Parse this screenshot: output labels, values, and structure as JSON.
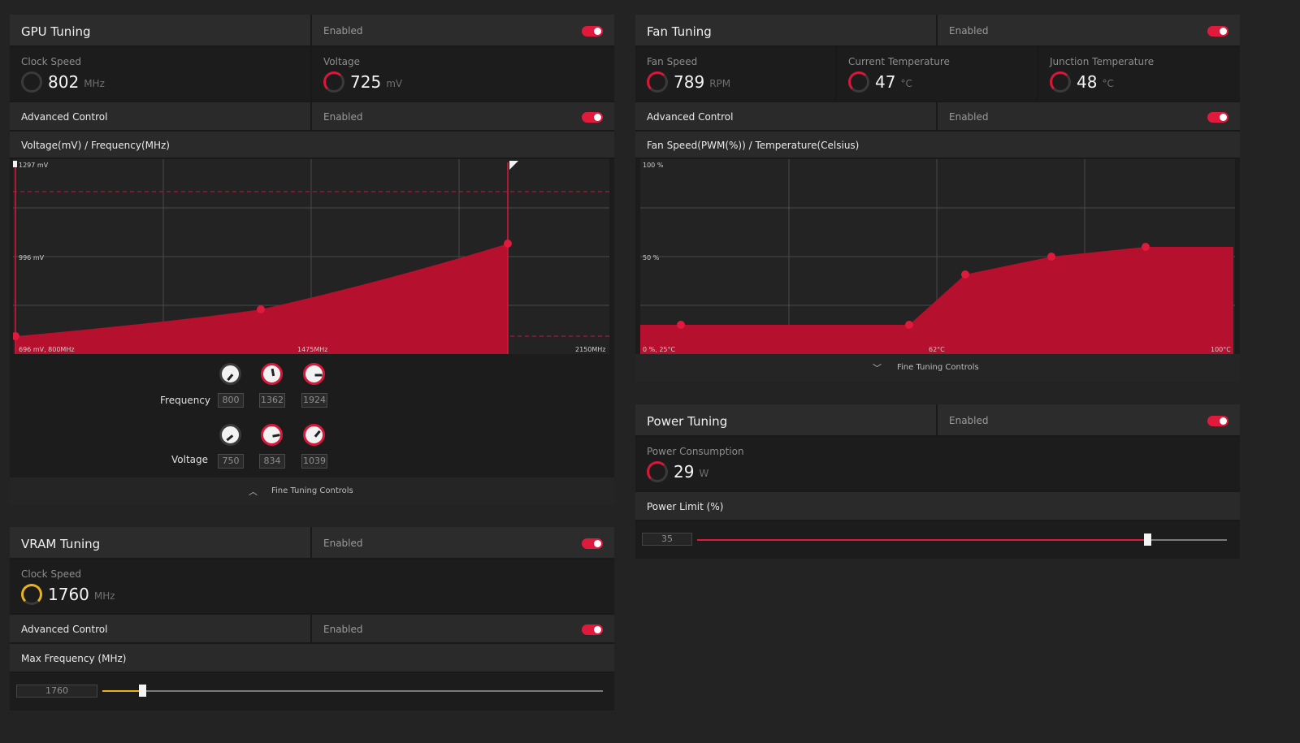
{
  "gpu_tuning": {
    "title": "GPU Tuning",
    "status": "Enabled",
    "clock_speed": {
      "label": "Clock Speed",
      "value": "802",
      "unit": "MHz"
    },
    "voltage": {
      "label": "Voltage",
      "value": "725",
      "unit": "mV"
    },
    "advanced_control": {
      "label": "Advanced Control",
      "status": "Enabled"
    },
    "chart_title": "Voltage(mV) / Frequency(MHz)",
    "chart_labels": {
      "top_left": "1297 mV",
      "mid_left": "996 mV",
      "bottom_left": "696 mV, 800MHz",
      "bottom_mid": "1475MHz",
      "bottom_right": "2150MHz"
    },
    "frequency_label": "Frequency",
    "frequency_values": [
      "800",
      "1362",
      "1924"
    ],
    "voltage_label": "Voltage",
    "voltage_values": [
      "750",
      "834",
      "1039"
    ],
    "fine_tuning_label": "Fine Tuning Controls"
  },
  "vram_tuning": {
    "title": "VRAM Tuning",
    "status": "Enabled",
    "clock_speed": {
      "label": "Clock Speed",
      "value": "1760",
      "unit": "MHz"
    },
    "advanced_control": {
      "label": "Advanced Control",
      "status": "Enabled"
    },
    "max_freq_label": "Max Frequency (MHz)",
    "max_freq_value": "1760",
    "max_freq_fraction": 0.08
  },
  "fan_tuning": {
    "title": "Fan Tuning",
    "status": "Enabled",
    "fan_speed": {
      "label": "Fan Speed",
      "value": "789",
      "unit": "RPM"
    },
    "current_temp": {
      "label": "Current Temperature",
      "value": "47",
      "unit": "°C"
    },
    "junction_temp": {
      "label": "Junction Temperature",
      "value": "48",
      "unit": "°C"
    },
    "advanced_control": {
      "label": "Advanced Control",
      "status": "Enabled"
    },
    "chart_title": "Fan Speed(PWM(%)) / Temperature(Celsius)",
    "chart_labels": {
      "top_left": "100 %",
      "mid_left": "50 %",
      "bottom_left": "0 %, 25°C",
      "bottom_mid": "62°C",
      "bottom_right": "100°C"
    },
    "fine_tuning_label": "Fine Tuning Controls"
  },
  "power_tuning": {
    "title": "Power Tuning",
    "status": "Enabled",
    "power_consumption": {
      "label": "Power Consumption",
      "value": "29",
      "unit": "W"
    },
    "power_limit_label": "Power Limit (%)",
    "power_limit_value": "35",
    "power_limit_fraction": 0.85
  },
  "colors": {
    "accent": "#e01a3c",
    "vram_accent": "#e8b21c"
  }
}
